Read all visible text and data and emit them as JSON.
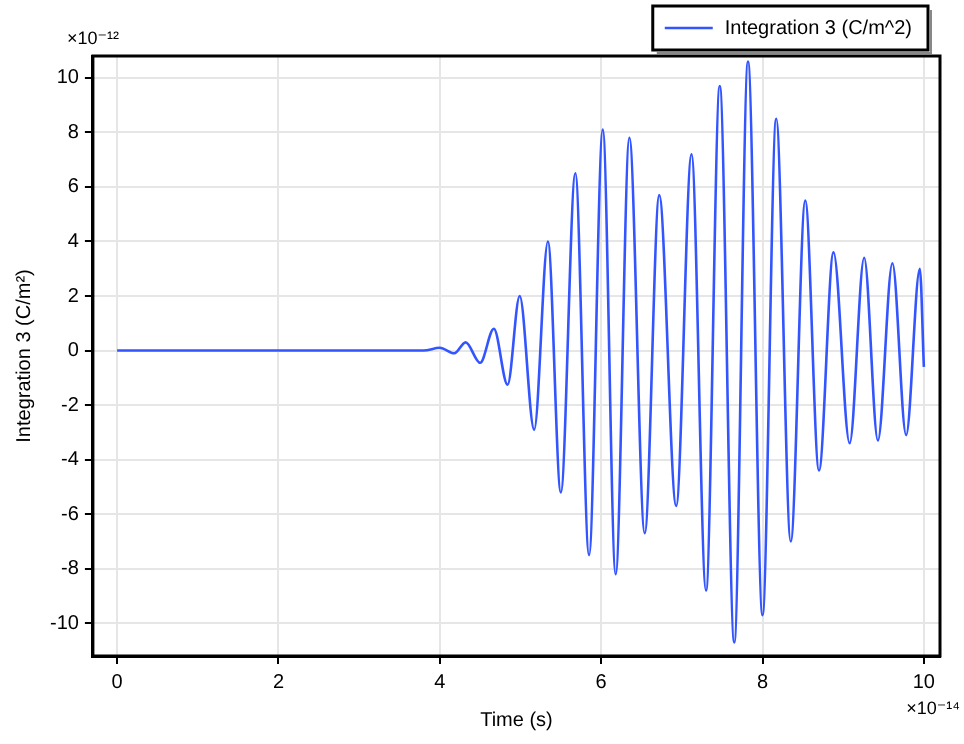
{
  "chart_data": {
    "type": "line",
    "xlabel": "Time (s)",
    "ylabel": "Integration 3 (C/m²)",
    "annotations": [
      "×10⁻¹²",
      "×10⁻¹⁴"
    ],
    "series": [
      {
        "name": "Integration 3 (C/m^2)",
        "color": "#3355ff",
        "x": [
          0,
          3.8,
          4.0,
          4.18,
          4.32,
          4.5,
          4.67,
          4.84,
          4.99,
          5.17,
          5.34,
          5.5,
          5.68,
          5.85,
          6.02,
          6.18,
          6.35,
          6.54,
          6.72,
          6.93,
          7.12,
          7.3,
          7.47,
          7.65,
          7.82,
          8.0,
          8.17,
          8.35,
          8.53,
          8.7,
          8.88,
          9.08,
          9.26,
          9.43,
          9.61,
          9.78,
          9.95,
          10.0
        ],
        "values": [
          0,
          0,
          0.1,
          -0.1,
          0.3,
          -0.45,
          0.8,
          -1.25,
          2.0,
          -2.9,
          4.0,
          -5.2,
          6.5,
          -7.5,
          8.1,
          -8.2,
          7.8,
          -6.7,
          5.7,
          -5.7,
          7.2,
          -8.8,
          9.7,
          -10.7,
          10.6,
          -9.7,
          8.5,
          -7.0,
          5.5,
          -4.4,
          3.6,
          -3.4,
          3.4,
          -3.3,
          3.2,
          -3.1,
          3.0,
          -0.6
        ]
      }
    ],
    "xlim": [
      -0.3,
      10.2
    ],
    "xticks": [
      0,
      2,
      4,
      6,
      8,
      10
    ],
    "ylim": [
      -11.2,
      10.8
    ],
    "yticks": [
      -10,
      -8,
      -6,
      -4,
      -2,
      0,
      2,
      4,
      6,
      8,
      10
    ],
    "grid": true,
    "legend": "top right",
    "marker": "none",
    "line_style": "solid"
  }
}
